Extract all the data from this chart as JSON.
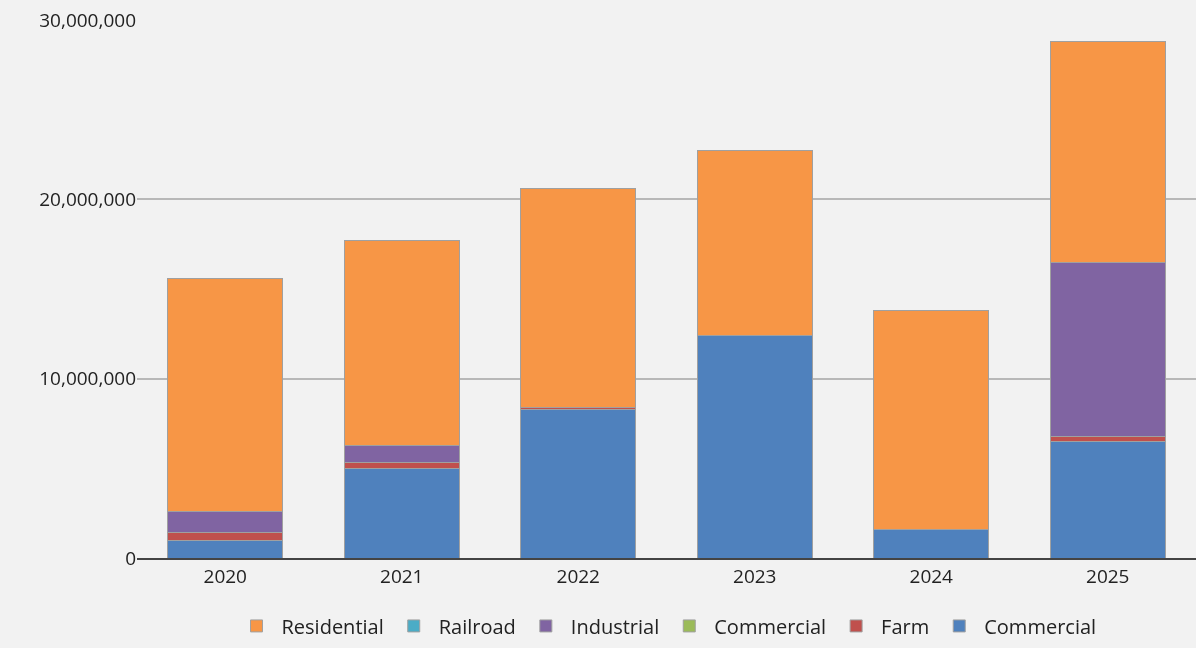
{
  "chart_data": {
    "type": "bar",
    "stacked": true,
    "categories": [
      "2020",
      "2021",
      "2022",
      "2023",
      "2024",
      "2025"
    ],
    "series": [
      {
        "name": "Commercial",
        "color": "#4f81bd",
        "values": [
          1000000.0,
          5000000.0,
          8300000.0,
          12400000.0,
          1600000.0,
          6500000.0
        ]
      },
      {
        "name": "Farm",
        "color": "#c0504d",
        "values": [
          400000.0,
          300000.0,
          100000.0,
          0,
          0,
          300000.0
        ]
      },
      {
        "name": "Commercial",
        "color": "#9bbb59",
        "values": [
          0,
          0,
          0,
          0,
          0,
          0
        ]
      },
      {
        "name": "Industrial",
        "color": "#8064a2",
        "values": [
          1200000.0,
          1000000.0,
          0,
          0,
          0,
          9700000.0
        ]
      },
      {
        "name": "Railroad",
        "color": "#4bacc6",
        "values": [
          0,
          0,
          0,
          0,
          0,
          0
        ]
      },
      {
        "name": "Residential",
        "color": "#f79646",
        "values": [
          13000000.0,
          11400000.0,
          12200000.0,
          10300000.0,
          12200000.0,
          12300000.0
        ]
      }
    ],
    "ylim": [
      0,
      30000000
    ],
    "yticks": [
      {
        "value": 0,
        "label": "0"
      },
      {
        "value": 10000000,
        "label": "10,000,000"
      },
      {
        "value": 20000000,
        "label": "20,000,000"
      },
      {
        "value": 30000000,
        "label": "30,000,000"
      }
    ],
    "grid": "y",
    "legend": "bottom"
  }
}
